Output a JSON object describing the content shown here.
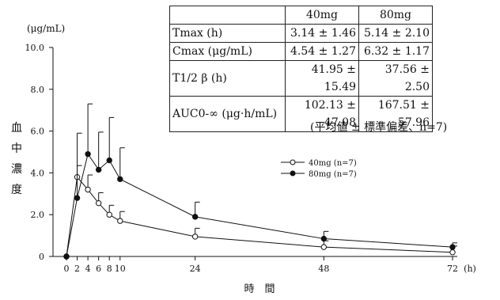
{
  "chart_data": {
    "type": "line",
    "y_unit_label": "(μg/mL)",
    "ylabel": [
      "血",
      "中",
      "濃",
      "度"
    ],
    "xlabel": "時　間",
    "x_unit_label": "(h)",
    "ylim": [
      0,
      10
    ],
    "xlim": [
      0,
      72
    ],
    "y_ticks": [
      0,
      2.0,
      4.0,
      6.0,
      8.0,
      10.0
    ],
    "y_tick_labels": [
      "0",
      "2.0",
      "4.0",
      "6.0",
      "8.0",
      "10.0"
    ],
    "x_ticks": [
      0,
      2,
      4,
      6,
      8,
      10,
      24,
      48,
      72
    ],
    "x_tick_labels": [
      "0",
      "2",
      "4",
      "6",
      "8",
      "10",
      "24",
      "48",
      "72"
    ],
    "series": [
      {
        "name": "40mg (n=7)",
        "marker": "open-circle",
        "x": [
          0,
          2,
          4,
          6,
          8,
          10,
          24,
          48,
          72
        ],
        "y": [
          0,
          3.8,
          3.2,
          2.55,
          2.0,
          1.7,
          0.95,
          0.45,
          0.2
        ],
        "error": [
          0,
          0.55,
          0.7,
          0.5,
          0.45,
          0.45,
          0.4,
          0.3,
          0.3
        ]
      },
      {
        "name": "80mg (n=7)",
        "marker": "filled-circle",
        "x": [
          0,
          2,
          4,
          6,
          8,
          10,
          24,
          48,
          72
        ],
        "y": [
          0,
          2.8,
          4.9,
          4.15,
          4.6,
          3.7,
          1.9,
          0.85,
          0.45
        ],
        "error": [
          0,
          3.1,
          2.4,
          1.8,
          2.05,
          1.5,
          0.7,
          0.35,
          0.2
        ]
      }
    ],
    "legend_position": "center-right"
  },
  "table": {
    "headers": [
      "",
      "40mg",
      "80mg"
    ],
    "rows": [
      [
        "Tmax (h)",
        "3.14 ± 1.46",
        "5.14 ± 2.10"
      ],
      [
        "Cmax (μg/mL)",
        "4.54 ± 1.27",
        "6.32 ± 1.17"
      ],
      [
        "T1/2 β (h)",
        "41.95 ± 15.49",
        "37.56 ± 2.50"
      ],
      [
        "AUC0-∞ (μg·h/mL)",
        "102.13 ± 47.08",
        "167.51 ± 57.96"
      ]
    ],
    "note": "(平均値 ± 標準偏差、n=7)"
  },
  "colors": {
    "line": "#111111",
    "background": "#ffffff"
  }
}
